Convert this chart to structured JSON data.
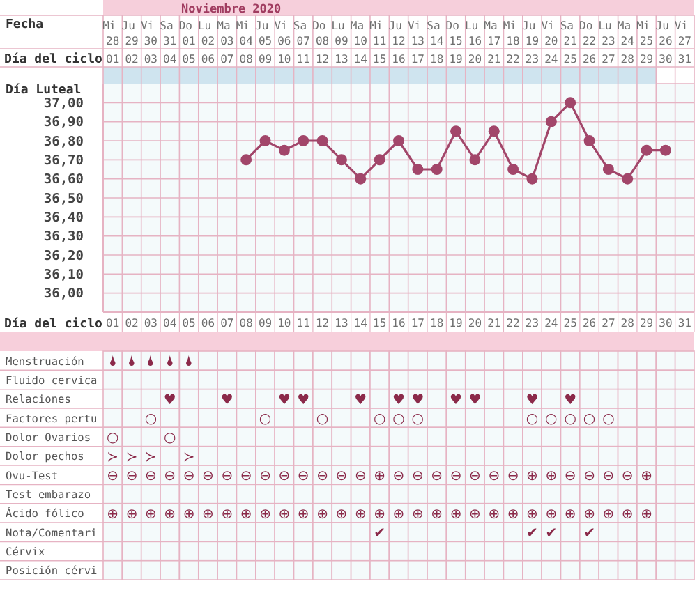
{
  "chart_data": [
    {
      "type": "line",
      "title": "Noviembre 2020",
      "color": "#a2466a",
      "marker": "circle",
      "line_style": "solid",
      "grid": true,
      "xlabel": "Fecha",
      "categories": [
        "Mi 28",
        "Ju 29",
        "Vi 30",
        "Sa 31",
        "Do 01",
        "Lu 02",
        "Ma 03",
        "Mi 04",
        "Ju 05",
        "Vi 06",
        "Sa 07",
        "Do 08",
        "Lu 09",
        "Ma 10",
        "Mi 11",
        "Ju 12",
        "Vi 13",
        "Sa 14",
        "Do 15",
        "Lu 16",
        "Ma 17",
        "Mi 18",
        "Ju 19",
        "Vi 20",
        "Sa 21",
        "Do 22",
        "Lu 23",
        "Ma 24",
        "Mi 25",
        "Ju 26",
        "Vi 27"
      ],
      "values": [
        null,
        null,
        null,
        null,
        null,
        null,
        null,
        36.7,
        36.8,
        36.75,
        36.8,
        36.8,
        36.7,
        36.6,
        36.7,
        36.8,
        36.65,
        36.65,
        36.85,
        36.7,
        36.85,
        36.65,
        36.6,
        36.9,
        37.0,
        36.8,
        36.65,
        36.6,
        36.75,
        36.75,
        null
      ],
      "x2label": "Día del ciclo",
      "x2lim": [
        0.5,
        31.5
      ],
      "x2ticks": [
        {
          "value": 1,
          "label": "01"
        },
        {
          "value": 2,
          "label": "02"
        },
        {
          "value": 3,
          "label": "03"
        },
        {
          "value": 4,
          "label": "04"
        },
        {
          "value": 5,
          "label": "05"
        },
        {
          "value": 6,
          "label": "06"
        },
        {
          "value": 7,
          "label": "07"
        },
        {
          "value": 8,
          "label": "08"
        },
        {
          "value": 9,
          "label": "09"
        },
        {
          "value": 10,
          "label": "10"
        },
        {
          "value": 11,
          "label": "11"
        },
        {
          "value": 12,
          "label": "12"
        },
        {
          "value": 13,
          "label": "13"
        },
        {
          "value": 14,
          "label": "14"
        },
        {
          "value": 15,
          "label": "15"
        },
        {
          "value": 16,
          "label": "16"
        },
        {
          "value": 17,
          "label": "17"
        },
        {
          "value": 18,
          "label": "18"
        },
        {
          "value": 19,
          "label": "19"
        },
        {
          "value": 20,
          "label": "20"
        },
        {
          "value": 21,
          "label": "21"
        },
        {
          "value": 22,
          "label": "22"
        },
        {
          "value": 23,
          "label": "23"
        },
        {
          "value": 24,
          "label": "24"
        },
        {
          "value": 25,
          "label": "25"
        },
        {
          "value": 26,
          "label": "26"
        },
        {
          "value": 27,
          "label": "27"
        },
        {
          "value": 28,
          "label": "28"
        },
        {
          "value": 29,
          "label": "29"
        },
        {
          "value": 30,
          "label": "30"
        },
        {
          "value": 31,
          "label": "31"
        }
      ],
      "ylim": [
        35.9,
        37.1
      ],
      "yticks": [
        {
          "value": 36,
          "label": "36,00"
        },
        {
          "value": 36.1,
          "label": "36,10"
        },
        {
          "value": 36.2,
          "label": "36,20"
        },
        {
          "value": 36.3,
          "label": "36,30"
        },
        {
          "value": 36.4,
          "label": "36,40"
        },
        {
          "value": 36.5,
          "label": "36,50"
        },
        {
          "value": 36.6,
          "label": "36,60"
        },
        {
          "value": 36.7,
          "label": "36,70"
        },
        {
          "value": 36.8,
          "label": "36,80"
        },
        {
          "value": 36.9,
          "label": "36,90"
        },
        {
          "value": 37,
          "label": "37,00"
        }
      ],
      "annotations": [
        "Día Luteal"
      ]
    },
    {
      "type": "heatmap",
      "xlabel": "Día del ciclo",
      "categories": [
        "01",
        "02",
        "03",
        "04",
        "05",
        "06",
        "07",
        "08",
        "09",
        "10",
        "11",
        "12",
        "13",
        "14",
        "15",
        "16",
        "17",
        "18",
        "19",
        "20",
        "21",
        "22",
        "23",
        "24",
        "25",
        "26",
        "27",
        "28",
        "29",
        "30",
        "31"
      ],
      "y_categories": [
        "Menstruación",
        "Fluido cervica",
        "Relaciones",
        "Factores pertu",
        "Dolor Ovarios",
        "Dolor pechos",
        "Ovu-Test",
        "Test embarazo",
        "Ácido fólico",
        "Nota/Comentari",
        "Cérvix",
        "Posición cérvi"
      ],
      "cells": [
        [
          null,
          null,
          null,
          null,
          null,
          null,
          null,
          null,
          null,
          null,
          null,
          null,
          null,
          null,
          null,
          null,
          null,
          null,
          null,
          null,
          null,
          null,
          null,
          null,
          null,
          null,
          null,
          null,
          null,
          null,
          null
        ],
        [
          null,
          null,
          null,
          null,
          null,
          null,
          null,
          null,
          null,
          null,
          null,
          null,
          null,
          null,
          null,
          null,
          null,
          null,
          null,
          null,
          null,
          null,
          null,
          null,
          null,
          null,
          null,
          null,
          null,
          null,
          null
        ],
        [
          null,
          null,
          null,
          null,
          null,
          null,
          null,
          null,
          null,
          null,
          null,
          null,
          null,
          null,
          null,
          null,
          null,
          null,
          null,
          null,
          null,
          null,
          null,
          null,
          null,
          null,
          null,
          null,
          null,
          null,
          null
        ],
        [
          null,
          null,
          null,
          null,
          null,
          null,
          null,
          null,
          null,
          null,
          null,
          null,
          null,
          null,
          null,
          null,
          null,
          null,
          null,
          null,
          null,
          null,
          null,
          null,
          null,
          null,
          null,
          null,
          null,
          null,
          null
        ],
        [
          null,
          null,
          null,
          null,
          null,
          null,
          null,
          null,
          null,
          null,
          null,
          null,
          null,
          null,
          null,
          null,
          null,
          null,
          null,
          null,
          null,
          null,
          null,
          null,
          null,
          null,
          null,
          null,
          null,
          null,
          null
        ],
        [
          null,
          null,
          null,
          null,
          null,
          null,
          null,
          null,
          null,
          null,
          null,
          null,
          null,
          null,
          null,
          null,
          null,
          null,
          null,
          null,
          null,
          null,
          null,
          null,
          null,
          null,
          null,
          null,
          null,
          null,
          null
        ],
        [
          null,
          null,
          null,
          null,
          null,
          null,
          null,
          null,
          null,
          null,
          null,
          null,
          null,
          null,
          null,
          null,
          null,
          null,
          null,
          null,
          null,
          null,
          null,
          null,
          null,
          null,
          null,
          null,
          null,
          null,
          null
        ],
        [
          null,
          null,
          null,
          null,
          null,
          null,
          null,
          null,
          null,
          null,
          null,
          null,
          null,
          null,
          null,
          null,
          null,
          null,
          null,
          null,
          null,
          null,
          null,
          null,
          null,
          null,
          null,
          null,
          null,
          null,
          null
        ],
        [
          null,
          null,
          null,
          null,
          null,
          null,
          null,
          null,
          null,
          null,
          null,
          null,
          null,
          null,
          null,
          null,
          null,
          null,
          null,
          null,
          null,
          null,
          null,
          null,
          null,
          null,
          null,
          null,
          null,
          null,
          null
        ],
        [
          null,
          null,
          null,
          null,
          null,
          null,
          null,
          null,
          null,
          null,
          null,
          null,
          null,
          null,
          null,
          null,
          null,
          null,
          null,
          null,
          null,
          null,
          null,
          null,
          null,
          null,
          null,
          null,
          null,
          null,
          null
        ],
        [
          null,
          null,
          null,
          null,
          null,
          null,
          null,
          null,
          null,
          null,
          null,
          null,
          null,
          null,
          null,
          null,
          null,
          null,
          null,
          null,
          null,
          null,
          null,
          null,
          null,
          null,
          null,
          null,
          null,
          null,
          null
        ],
        [
          null,
          null,
          null,
          null,
          null,
          null,
          null,
          null,
          null,
          null,
          null,
          null,
          null,
          null,
          null,
          null,
          null,
          null,
          null,
          null,
          null,
          null,
          null,
          null,
          null,
          null,
          null,
          null,
          null,
          null,
          null
        ]
      ],
      "cell_labels": [
        [
          "🌢",
          "🌢",
          "🌢",
          "🌢",
          "🌢",
          null,
          null,
          null,
          null,
          null,
          null,
          null,
          null,
          null,
          null,
          null,
          null,
          null,
          null,
          null,
          null,
          null,
          null,
          null,
          null,
          null,
          null,
          null,
          null,
          null,
          null
        ],
        [
          null,
          null,
          null,
          null,
          null,
          null,
          null,
          null,
          null,
          null,
          null,
          null,
          null,
          null,
          null,
          null,
          null,
          null,
          null,
          null,
          null,
          null,
          null,
          null,
          null,
          null,
          null,
          null,
          null,
          null,
          null
        ],
        [
          null,
          null,
          null,
          "♥",
          null,
          null,
          "♥",
          null,
          null,
          "♥",
          "♥",
          null,
          null,
          "♥",
          null,
          "♥",
          "♥",
          null,
          "♥",
          "♥",
          null,
          null,
          "♥",
          null,
          "♥",
          null,
          null,
          null,
          null,
          null,
          null
        ],
        [
          null,
          null,
          "○",
          null,
          null,
          null,
          null,
          null,
          "○",
          null,
          null,
          "○",
          null,
          null,
          "○",
          "○",
          "○",
          null,
          null,
          null,
          null,
          null,
          "○",
          "○",
          "○",
          "○",
          "○",
          null,
          null,
          null,
          null
        ],
        [
          "○",
          null,
          null,
          "○",
          null,
          null,
          null,
          null,
          null,
          null,
          null,
          null,
          null,
          null,
          null,
          null,
          null,
          null,
          null,
          null,
          null,
          null,
          null,
          null,
          null,
          null,
          null,
          null,
          null,
          null,
          null
        ],
        [
          "≻",
          "≻",
          "≻",
          null,
          "≻",
          null,
          null,
          null,
          null,
          null,
          null,
          null,
          null,
          null,
          null,
          null,
          null,
          null,
          null,
          null,
          null,
          null,
          null,
          null,
          null,
          null,
          null,
          null,
          null,
          null,
          null
        ],
        [
          "⊖",
          "⊖",
          "⊖",
          "⊖",
          "⊖",
          "⊖",
          "⊖",
          "⊖",
          "⊖",
          "⊖",
          "⊖",
          "⊖",
          "⊖",
          "⊖",
          "⊕",
          "⊖",
          "⊖",
          "⊖",
          "⊖",
          "⊖",
          "⊖",
          "⊖",
          "⊕",
          "⊕",
          "⊖",
          "⊖",
          "⊖",
          "⊖",
          "⊕",
          null,
          null
        ],
        [
          null,
          null,
          null,
          null,
          null,
          null,
          null,
          null,
          null,
          null,
          null,
          null,
          null,
          null,
          null,
          null,
          null,
          null,
          null,
          null,
          null,
          null,
          null,
          null,
          null,
          null,
          null,
          null,
          null,
          null,
          null
        ],
        [
          "⊕",
          "⊕",
          "⊕",
          "⊕",
          "⊕",
          "⊕",
          "⊕",
          "⊕",
          "⊕",
          "⊕",
          "⊕",
          "⊕",
          "⊕",
          "⊕",
          "⊕",
          "⊕",
          "⊕",
          "⊕",
          "⊕",
          "⊕",
          "⊕",
          "⊕",
          "⊕",
          "⊕",
          "⊕",
          "⊕",
          "⊕",
          "⊕",
          "⊕",
          null,
          null
        ],
        [
          null,
          null,
          null,
          null,
          null,
          null,
          null,
          null,
          null,
          null,
          null,
          null,
          null,
          null,
          "✔",
          null,
          null,
          null,
          null,
          null,
          null,
          null,
          "✔",
          "✔",
          null,
          "✔",
          null,
          null,
          null,
          null,
          null
        ],
        [
          null,
          null,
          null,
          null,
          null,
          null,
          null,
          null,
          null,
          null,
          null,
          null,
          null,
          null,
          null,
          null,
          null,
          null,
          null,
          null,
          null,
          null,
          null,
          null,
          null,
          null,
          null,
          null,
          null,
          null,
          null
        ],
        [
          null,
          null,
          null,
          null,
          null,
          null,
          null,
          null,
          null,
          null,
          null,
          null,
          null,
          null,
          null,
          null,
          null,
          null,
          null,
          null,
          null,
          null,
          null,
          null,
          null,
          null,
          null,
          null,
          null,
          null,
          null
        ]
      ]
    }
  ]
}
